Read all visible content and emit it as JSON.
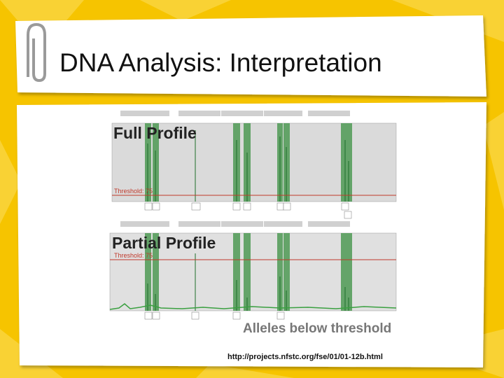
{
  "title": "DNA Analysis: Interpretation",
  "full_profile": {
    "label": "Full Profile",
    "threshold": "Threshold: 75"
  },
  "partial_profile": {
    "label": "Partial Profile",
    "threshold": "Threshold: 75",
    "note": "Alleles below threshold"
  },
  "source": "http://projects.nfstc.org/fse/01/01-12b.html"
}
